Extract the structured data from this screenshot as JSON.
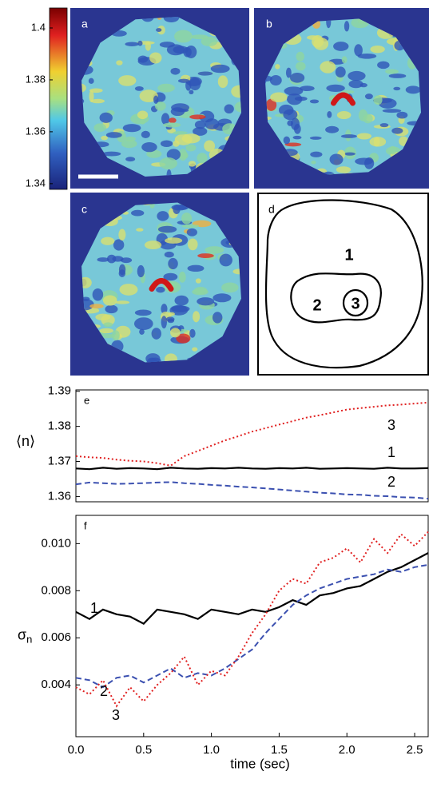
{
  "panels": {
    "labels": [
      "a",
      "b",
      "c",
      "d"
    ],
    "regions": [
      "1",
      "2",
      "3"
    ],
    "colorbar": {
      "ylim": [
        1.3378,
        1.4077
      ],
      "yticks": [
        1.4,
        1.38,
        1.36,
        1.34
      ]
    }
  },
  "chart_data": [
    {
      "type": "line",
      "panel_label": "e",
      "y_label": "⟨n⟩",
      "x": [
        0,
        0.1,
        0.2,
        0.3,
        0.4,
        0.5,
        0.6,
        0.7,
        0.8,
        0.9,
        1.0,
        1.1,
        1.2,
        1.3,
        1.4,
        1.5,
        1.6,
        1.7,
        1.8,
        1.9,
        2.0,
        2.1,
        2.2,
        2.3,
        2.4,
        2.5,
        2.6
      ],
      "xlim": [
        0,
        2.6
      ],
      "ylim": [
        1.3585,
        1.3904
      ],
      "yticks": [
        1.39,
        1.38,
        1.37,
        1.36
      ],
      "series": [
        {
          "name": "1",
          "color": "#000000",
          "style": "solid",
          "values": [
            1.368,
            1.3678,
            1.3682,
            1.3679,
            1.3681,
            1.368,
            1.3678,
            1.3682,
            1.368,
            1.3679,
            1.3681,
            1.368,
            1.3682,
            1.368,
            1.3679,
            1.3681,
            1.368,
            1.3682,
            1.3679,
            1.368,
            1.3681,
            1.368,
            1.3679,
            1.3682,
            1.368,
            1.368,
            1.3681
          ]
        },
        {
          "name": "2",
          "color": "#3b50b0",
          "style": "dashed",
          "values": [
            1.3635,
            1.364,
            1.3638,
            1.3636,
            1.3637,
            1.3638,
            1.364,
            1.3641,
            1.3638,
            1.3636,
            1.3633,
            1.3631,
            1.3628,
            1.3626,
            1.3623,
            1.362,
            1.3617,
            1.3614,
            1.3611,
            1.3609,
            1.3606,
            1.3605,
            1.3602,
            1.3601,
            1.3598,
            1.3597,
            1.3594
          ]
        },
        {
          "name": "3",
          "color": "#e02020",
          "style": "dotted",
          "values": [
            1.3715,
            1.3712,
            1.371,
            1.3705,
            1.3702,
            1.37,
            1.3695,
            1.3688,
            1.3715,
            1.373,
            1.3745,
            1.376,
            1.3772,
            1.3785,
            1.3795,
            1.3805,
            1.3815,
            1.3825,
            1.3832,
            1.384,
            1.3848,
            1.3852,
            1.3856,
            1.386,
            1.3862,
            1.3865,
            1.3868
          ]
        }
      ]
    },
    {
      "type": "line",
      "panel_label": "f",
      "y_label": "σ",
      "y_label_subscript": "n",
      "x_label": "time (sec)",
      "x": [
        0,
        0.1,
        0.2,
        0.3,
        0.4,
        0.5,
        0.6,
        0.7,
        0.8,
        0.9,
        1.0,
        1.1,
        1.2,
        1.3,
        1.4,
        1.5,
        1.6,
        1.7,
        1.8,
        1.9,
        2.0,
        2.1,
        2.2,
        2.3,
        2.4,
        2.5,
        2.6
      ],
      "xlim": [
        0,
        2.6
      ],
      "ylim": [
        0.0018,
        0.0112
      ],
      "xticks": [
        {
          "value": 0,
          "label": "0.0"
        },
        0.5,
        {
          "value": 1,
          "label": "1.0"
        },
        1.5,
        {
          "value": 2,
          "label": "2.0"
        },
        2.5
      ],
      "yticks": [
        {
          "value": 0.01,
          "label": "0.010"
        },
        0.008,
        0.006,
        0.004
      ],
      "series": [
        {
          "name": "1",
          "color": "#000000",
          "style": "solid",
          "values": [
            0.0071,
            0.0068,
            0.0072,
            0.007,
            0.0069,
            0.0066,
            0.0072,
            0.0071,
            0.007,
            0.0068,
            0.0072,
            0.0071,
            0.007,
            0.0072,
            0.0071,
            0.0073,
            0.0076,
            0.0074,
            0.0078,
            0.0079,
            0.0081,
            0.0082,
            0.0085,
            0.0088,
            0.009,
            0.0093,
            0.0096
          ]
        },
        {
          "name": "2",
          "color": "#3b50b0",
          "style": "dashed",
          "values": [
            0.0043,
            0.0042,
            0.0039,
            0.0043,
            0.0044,
            0.0041,
            0.0044,
            0.0047,
            0.0043,
            0.0045,
            0.0044,
            0.0047,
            0.0051,
            0.0055,
            0.0062,
            0.0068,
            0.0074,
            0.0078,
            0.0081,
            0.0083,
            0.0085,
            0.0086,
            0.0087,
            0.0089,
            0.0088,
            0.009,
            0.0091
          ]
        },
        {
          "name": "3",
          "color": "#e02020",
          "style": "dotted",
          "values": [
            0.0039,
            0.0036,
            0.0042,
            0.0031,
            0.0039,
            0.0033,
            0.004,
            0.0045,
            0.0052,
            0.004,
            0.0046,
            0.0044,
            0.0052,
            0.0062,
            0.007,
            0.008,
            0.0085,
            0.0083,
            0.0092,
            0.0094,
            0.0098,
            0.0092,
            0.0102,
            0.0096,
            0.0104,
            0.0099,
            0.0105
          ]
        }
      ]
    }
  ]
}
